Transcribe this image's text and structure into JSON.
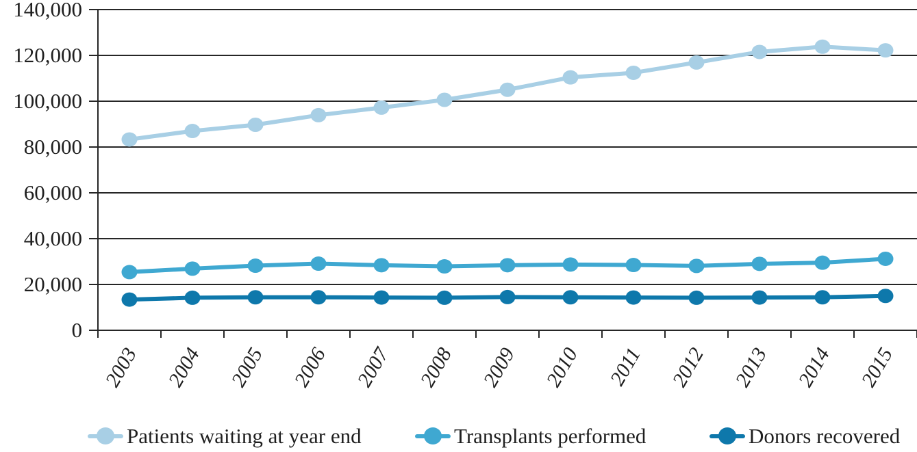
{
  "chart_data": {
    "type": "line",
    "x": [
      "2003",
      "2004",
      "2005",
      "2006",
      "2007",
      "2008",
      "2009",
      "2010",
      "2011",
      "2012",
      "2013",
      "2014",
      "2015"
    ],
    "series": [
      {
        "name": "Patients waiting at year end",
        "color": "#a8cfe5",
        "values": [
          83300,
          87000,
          89700,
          93900,
          97200,
          100600,
          105000,
          110400,
          112400,
          116900,
          121500,
          123800,
          122200
        ]
      },
      {
        "name": "Transplants performed",
        "color": "#3fa8d1",
        "values": [
          25400,
          26900,
          28200,
          29100,
          28400,
          27900,
          28400,
          28700,
          28500,
          28100,
          29000,
          29500,
          31200
        ]
      },
      {
        "name": "Donors recovered",
        "color": "#0e78ab",
        "values": [
          13400,
          14200,
          14400,
          14400,
          14300,
          14200,
          14500,
          14400,
          14300,
          14200,
          14300,
          14400,
          15000
        ]
      }
    ],
    "title": "",
    "xlabel": "",
    "ylabel": "",
    "ylim": [
      0,
      140000
    ],
    "ytick_step": 20000,
    "ytick_labels": [
      "0",
      "20,000",
      "40,000",
      "60,000",
      "80,000",
      "100,000",
      "120,000",
      "140,000"
    ],
    "grid": "horizontal gridlines at every 20,000",
    "legend_position": "bottom",
    "axis_color": "#262626",
    "text_color": "#1f1f1f"
  }
}
